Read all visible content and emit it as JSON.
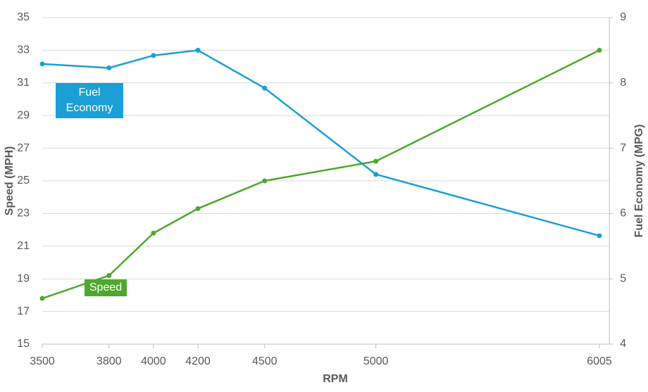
{
  "chart_data": {
    "type": "line",
    "x_label": "RPM",
    "y_label": "Speed (MPH)",
    "y2_label": "Fuel Economy (MPG)",
    "x": [
      3500,
      3800,
      4000,
      4200,
      4500,
      5000,
      6005
    ],
    "xlim": [
      3500,
      6050
    ],
    "xticks": [
      3500,
      3800,
      4000,
      4200,
      4500,
      5000,
      6005
    ],
    "ylim": [
      15,
      35
    ],
    "yticks": [
      15,
      17,
      19,
      21,
      23,
      25,
      27,
      29,
      31,
      33,
      35
    ],
    "y2lim": [
      4,
      9
    ],
    "y2ticks": [
      4,
      5,
      6,
      7,
      8,
      9
    ],
    "grid": true,
    "series": [
      {
        "name": "Fuel Economy",
        "color": "#1a9fd6",
        "axis": "y2",
        "values": [
          8.29,
          8.23,
          8.42,
          8.5,
          7.92,
          6.6,
          5.66
        ]
      },
      {
        "name": "Speed",
        "color": "#4ea72e",
        "values": [
          17.8,
          19.2,
          21.8,
          23.3,
          25.0,
          26.2,
          33.0
        ]
      }
    ]
  }
}
